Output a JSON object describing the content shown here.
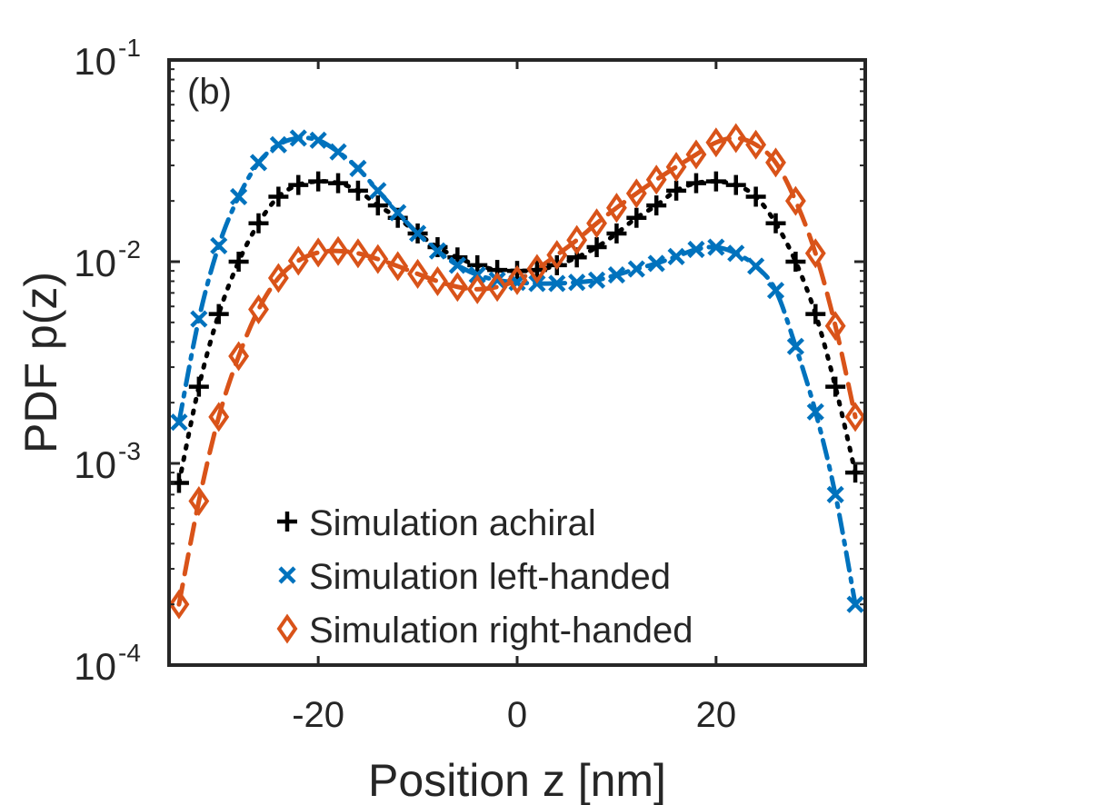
{
  "chart_data": {
    "type": "line",
    "panel_label": "(b)",
    "xlabel": "Position z [nm]",
    "ylabel": "PDF p(z)",
    "xlim": [
      -35,
      35
    ],
    "ylim": [
      0.0001,
      0.1
    ],
    "yscale": "log",
    "xticks": [
      -20,
      0,
      20
    ],
    "xtick_labels": [
      "-20",
      "0",
      "20"
    ],
    "yticks": [
      {
        "value": 0.1,
        "base": "10",
        "exp": "-1"
      },
      {
        "value": 0.01,
        "base": "10",
        "exp": "-2"
      },
      {
        "value": 0.001,
        "base": "10",
        "exp": "-3"
      },
      {
        "value": 0.0001,
        "base": "10",
        "exp": "-4"
      }
    ],
    "legend_position": "bottom-center",
    "series": [
      {
        "name": "Simulation achiral",
        "color": "#000000",
        "marker": "plus",
        "line_style": "dotted",
        "x": [
          -34,
          -32,
          -30,
          -28,
          -26,
          -24,
          -22,
          -20,
          -18,
          -16,
          -14,
          -12,
          -10,
          -8,
          -6,
          -4,
          -2,
          0,
          2,
          4,
          6,
          8,
          10,
          12,
          14,
          16,
          18,
          20,
          22,
          24,
          26,
          28,
          30,
          32,
          34
        ],
        "y": [
          0.0008,
          0.0024,
          0.0055,
          0.01,
          0.0155,
          0.021,
          0.024,
          0.025,
          0.0245,
          0.0225,
          0.019,
          0.0165,
          0.0138,
          0.0118,
          0.0105,
          0.0096,
          0.0091,
          0.009,
          0.0091,
          0.0096,
          0.0105,
          0.0118,
          0.0138,
          0.0165,
          0.019,
          0.0225,
          0.0245,
          0.025,
          0.024,
          0.021,
          0.0155,
          0.01,
          0.0055,
          0.0024,
          0.0009
        ]
      },
      {
        "name": "Simulation left-handed",
        "color": "#0072BD",
        "marker": "x",
        "line_style": "dash-dot",
        "x": [
          -34,
          -32,
          -30,
          -28,
          -26,
          -24,
          -22,
          -20,
          -18,
          -16,
          -14,
          -12,
          -10,
          -8,
          -6,
          -4,
          -2,
          0,
          2,
          4,
          6,
          8,
          10,
          12,
          14,
          16,
          18,
          20,
          22,
          24,
          26,
          28,
          30,
          32,
          34
        ],
        "y": [
          0.0016,
          0.0052,
          0.012,
          0.021,
          0.031,
          0.038,
          0.041,
          0.04,
          0.035,
          0.029,
          0.0225,
          0.0175,
          0.0138,
          0.0113,
          0.0096,
          0.0086,
          0.0081,
          0.0079,
          0.0078,
          0.0078,
          0.0079,
          0.0081,
          0.0086,
          0.0092,
          0.0098,
          0.0106,
          0.0115,
          0.0118,
          0.011,
          0.0095,
          0.0072,
          0.0038,
          0.0018,
          0.0007,
          0.0002
        ]
      },
      {
        "name": "Simulation right-handed",
        "color": "#D95319",
        "marker": "diamond",
        "line_style": "dashed",
        "x": [
          -34,
          -32,
          -30,
          -28,
          -26,
          -24,
          -22,
          -20,
          -18,
          -16,
          -14,
          -12,
          -10,
          -8,
          -6,
          -4,
          -2,
          0,
          2,
          4,
          6,
          8,
          10,
          12,
          14,
          16,
          18,
          20,
          22,
          24,
          26,
          28,
          30,
          32,
          34
        ],
        "y": [
          0.0002,
          0.00065,
          0.0017,
          0.0034,
          0.0058,
          0.0083,
          0.0101,
          0.0111,
          0.0113,
          0.011,
          0.0103,
          0.0095,
          0.0087,
          0.008,
          0.0075,
          0.0073,
          0.0075,
          0.0081,
          0.0092,
          0.0108,
          0.0128,
          0.0155,
          0.0185,
          0.0218,
          0.0255,
          0.0295,
          0.034,
          0.039,
          0.041,
          0.038,
          0.031,
          0.02,
          0.011,
          0.0048,
          0.0017
        ]
      }
    ]
  }
}
